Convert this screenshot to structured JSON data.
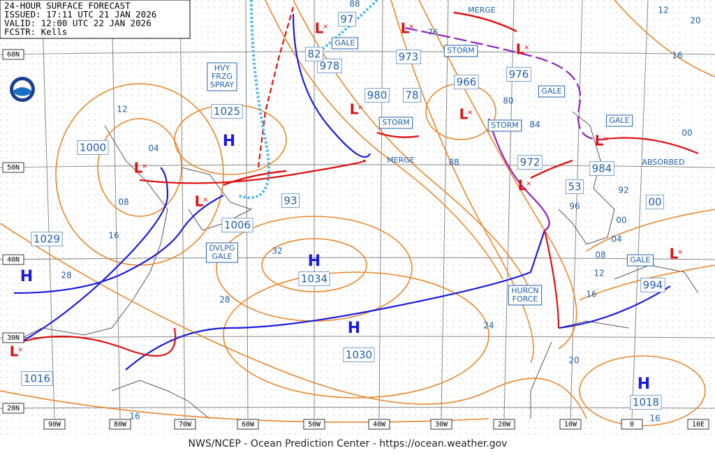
{
  "header": {
    "lines": [
      "24-HOUR SURFACE FORECAST",
      "ISSUED: 17:11 UTC 21 JAN 2026",
      "VALID:  12:00 UTC 22 JAN 2026",
      "FCSTR:  Kells"
    ]
  },
  "footer": "NWS/NCEP - Ocean Prediction Center - https://ocean.weather.gov",
  "lat_labels": [
    "60N",
    "50N",
    "40N",
    "30N",
    "20N"
  ],
  "lon_labels": [
    "90W",
    "80W",
    "70W",
    "60W",
    "50W",
    "40W",
    "30W",
    "20W",
    "10W",
    "0",
    "10E"
  ],
  "highs": [
    {
      "symbol": "H",
      "pressure": "1025"
    },
    {
      "symbol": "H",
      "pressure": "1029"
    },
    {
      "symbol": "H",
      "pressure": "1034"
    },
    {
      "symbol": "H",
      "pressure": "1030"
    },
    {
      "symbol": "H",
      "pressure": "1018"
    }
  ],
  "lows": [
    {
      "symbol": "L",
      "pressure": "1000"
    },
    {
      "symbol": "L",
      "pressure": "1006"
    },
    {
      "symbol": "L",
      "pressure": "1016"
    },
    {
      "symbol": "L",
      "pressure": "978"
    },
    {
      "symbol": "L",
      "pressure": "973"
    },
    {
      "symbol": "L",
      "pressure": "980"
    },
    {
      "symbol": "L",
      "pressure": "966"
    },
    {
      "symbol": "L",
      "pressure": "976"
    },
    {
      "symbol": "L",
      "pressure": "972"
    },
    {
      "symbol": "L",
      "pressure": "984"
    },
    {
      "symbol": "L",
      "pressure": "994"
    }
  ],
  "low_pressure_labels": [
    "97",
    "82",
    "78",
    "93",
    "53",
    "00"
  ],
  "isobar_labels": [
    "12",
    "04",
    "08",
    "16",
    "28",
    "32",
    "28",
    "24",
    "20",
    "16",
    "16",
    "88",
    "76",
    "80",
    "84",
    "88",
    "96",
    "92",
    "00",
    "04",
    "08",
    "12",
    "16",
    "12",
    "20",
    "16",
    "00"
  ],
  "warnings": [
    {
      "lines": [
        "HVY",
        "FRZG",
        "SPRAY"
      ]
    },
    {
      "lines": [
        "GALE"
      ]
    },
    {
      "lines": [
        "STORM"
      ]
    },
    {
      "lines": [
        "GALE"
      ]
    },
    {
      "lines": [
        "STORM"
      ]
    },
    {
      "lines": [
        "STORM"
      ]
    },
    {
      "lines": [
        "GALE"
      ]
    },
    {
      "lines": [
        "DVLPG",
        "GALE"
      ]
    },
    {
      "lines": [
        "HURCN",
        "FORCE"
      ]
    },
    {
      "lines": [
        "GALE"
      ]
    }
  ],
  "notes": [
    "MERGE",
    "MERGE",
    "ABSORBED"
  ]
}
